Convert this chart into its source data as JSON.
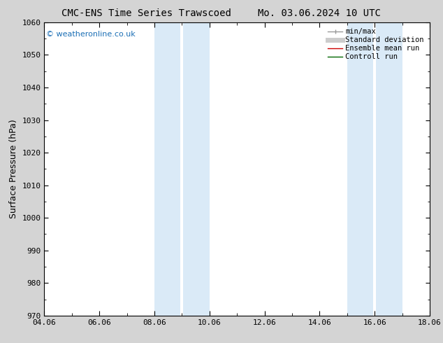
{
  "title": "CMC-ENS Time Series Trawscoed",
  "title2": "Mo. 03.06.2024 10 UTC",
  "ylabel": "Surface Pressure (hPa)",
  "ylim": [
    970,
    1060
  ],
  "yticks": [
    970,
    980,
    990,
    1000,
    1010,
    1020,
    1030,
    1040,
    1050,
    1060
  ],
  "xlim_start": 0,
  "xlim_end": 14,
  "xtick_labels": [
    "04.06",
    "06.06",
    "08.06",
    "10.06",
    "12.06",
    "14.06",
    "16.06",
    "18.06"
  ],
  "xtick_positions": [
    0,
    2,
    4,
    6,
    8,
    10,
    12,
    14
  ],
  "shade_bands": [
    {
      "x_start": 4.0,
      "x_end": 4.95
    },
    {
      "x_start": 5.05,
      "x_end": 6.0
    },
    {
      "x_start": 11.0,
      "x_end": 11.95
    },
    {
      "x_start": 12.05,
      "x_end": 13.0
    }
  ],
  "shade_color": "#daeaf7",
  "watermark": "© weatheronline.co.uk",
  "watermark_color": "#1a6eb5",
  "legend_items": [
    {
      "label": "min/max",
      "color": "#999999",
      "lw": 1.0
    },
    {
      "label": "Standard deviation",
      "color": "#cccccc",
      "lw": 5
    },
    {
      "label": "Ensemble mean run",
      "color": "#cc0000",
      "lw": 1.0
    },
    {
      "label": "Controll run",
      "color": "#006600",
      "lw": 1.0
    }
  ],
  "bg_color": "#d4d4d4",
  "plot_bg_color": "#ffffff",
  "title_fontsize": 10,
  "axis_fontsize": 9,
  "tick_fontsize": 8,
  "legend_fontsize": 7.5
}
